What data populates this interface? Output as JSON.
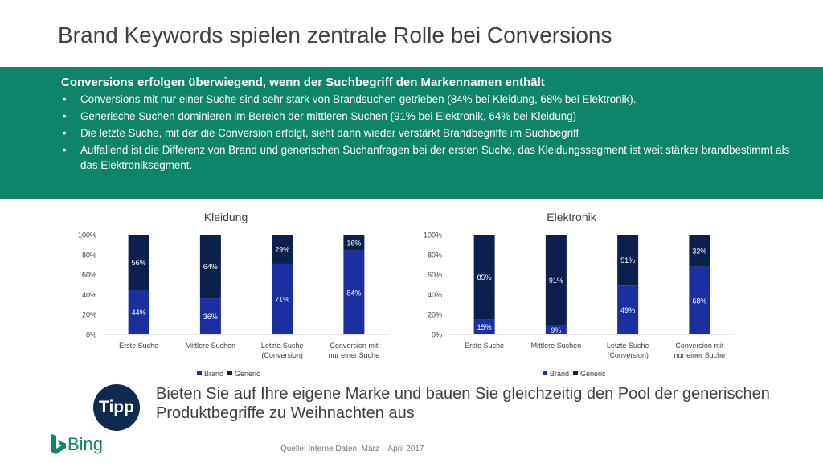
{
  "title": "Brand Keywords spielen zentrale Rolle bei Conversions",
  "band": {
    "heading": "Conversions erfolgen überwiegend, wenn der Suchbegriff den Markennamen enthält",
    "bullets": [
      "Conversions mit nur einer Suche sind sehr stark von Brandsuchen getrieben (84% bei Kleidung, 68% bei Elektronik).",
      "Generische Suchen dominieren im Bereich der mittleren Suchen (91% bei Elektronik, 64% bei Kleidung)",
      "Die letzte Suche, mit der die Conversion erfolgt, sieht dann wieder verstärkt Brandbegriffe im Suchbegriff",
      "Auffallend ist  die Differenz von Brand und generischen Suchanfragen bei der ersten Suche, das Kleidungssegment ist weit stärker brandbestimmt als das Elektroniksegment."
    ]
  },
  "chart_data": [
    {
      "type": "bar",
      "stacked": true,
      "title": "Kleidung",
      "categories": [
        "Erste Suche",
        "Mittlere Suchen",
        "Letzte Suche (Conversion)",
        "Conversion mit nur einer Suche"
      ],
      "series": [
        {
          "name": "Brand",
          "values": [
            44,
            36,
            71,
            84
          ],
          "labels": [
            "44%",
            "36%",
            "71%",
            "84%"
          ],
          "color": "#1a2fa0"
        },
        {
          "name": "Generic",
          "values": [
            56,
            64,
            29,
            16
          ],
          "labels": [
            "56%",
            "64%",
            "29%",
            "16%"
          ],
          "color": "#0d1f4d"
        }
      ],
      "y_ticks": [
        "0%",
        "20%",
        "40%",
        "60%",
        "80%",
        "100%"
      ],
      "ylim": [
        0,
        100
      ],
      "legend": "bottom"
    },
    {
      "type": "bar",
      "stacked": true,
      "title": "Elektronik",
      "categories": [
        "Erste Suche",
        "Mittlere Suchen",
        "Letzte Suche (Conversion)",
        "Conversion mit nur einer Suche"
      ],
      "series": [
        {
          "name": "Brand",
          "values": [
            15,
            9,
            49,
            68
          ],
          "labels": [
            "15%",
            "9%",
            "49%",
            "68%"
          ],
          "color": "#1a2fa0"
        },
        {
          "name": "Generic",
          "values": [
            85,
            91,
            51,
            32
          ],
          "labels": [
            "85%",
            "91%",
            "51%",
            "32%"
          ],
          "color": "#0d1f4d"
        }
      ],
      "y_ticks": [
        "0%",
        "20%",
        "40%",
        "60%",
        "80%",
        "100%"
      ],
      "ylim": [
        0,
        100
      ],
      "legend": "bottom"
    }
  ],
  "tipp": {
    "badge": "Tipp",
    "text": "Bieten Sie auf Ihre eigene Marke und bauen Sie gleichzeitig den Pool der generischen Produktbegriffe zu Weihnachten aus"
  },
  "brand": {
    "name": "Bing",
    "color": "#0f8468"
  },
  "source": "Quelle: Interne Daten; März – April 2017"
}
